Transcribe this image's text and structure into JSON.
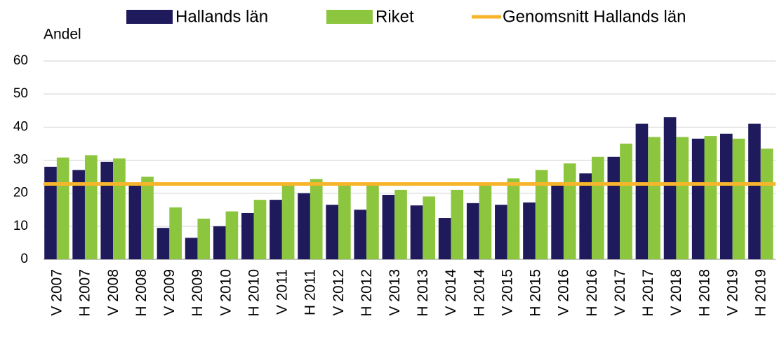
{
  "chart_data": {
    "type": "bar",
    "y_label": "Andel",
    "categories": [
      "V 2007",
      "H 2007",
      "V 2008",
      "H 2008",
      "V 2009",
      "H 2009",
      "V 2010",
      "H 2010",
      "V 2011",
      "H 2011",
      "V 2012",
      "H 2012",
      "V 2013",
      "H 2013",
      "V 2014",
      "H 2014",
      "V 2015",
      "H 2015",
      "V 2016",
      "H 2016",
      "V 2017",
      "H 2017",
      "V 2018",
      "H 2018",
      "V 2019",
      "H 2019"
    ],
    "series": [
      {
        "name": "Hallands län",
        "color": "#1f1a5c",
        "values": [
          28,
          27,
          29.5,
          22.5,
          9.5,
          6.5,
          10,
          14,
          18,
          20,
          16.5,
          15,
          19.5,
          16.3,
          12.5,
          17,
          16.5,
          17.2,
          22.5,
          26,
          31,
          41,
          43,
          36.5,
          38,
          41
        ]
      },
      {
        "name": "Riket",
        "color": "#8cc63f",
        "values": [
          30.8,
          31.5,
          30.5,
          25,
          15.7,
          12.3,
          14.5,
          18,
          22.5,
          24.3,
          22.5,
          22.5,
          21,
          19,
          21,
          22.5,
          24.5,
          27,
          29,
          31,
          35,
          37,
          37,
          37.3,
          36.5,
          33.5
        ]
      }
    ],
    "average": {
      "name": "Genomsnitt Hallands län",
      "color": "#f7b52c",
      "value": 22.8
    },
    "ylim": [
      0,
      60
    ],
    "yticks": [
      0,
      10,
      20,
      30,
      40,
      50,
      60
    ],
    "grid": true
  }
}
